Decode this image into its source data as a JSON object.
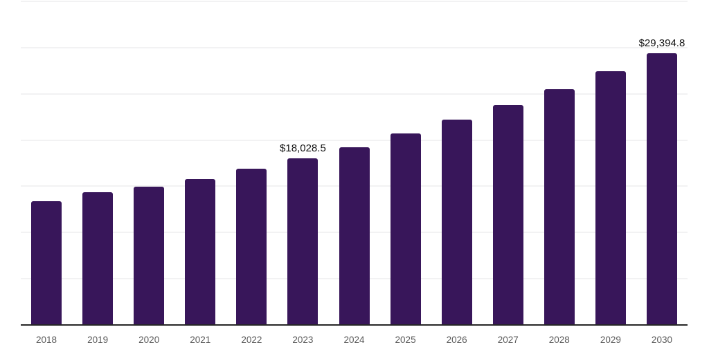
{
  "chart_data": {
    "type": "bar",
    "title": "",
    "xlabel": "",
    "ylabel": "",
    "categories": [
      "2018",
      "2019",
      "2020",
      "2021",
      "2022",
      "2023",
      "2024",
      "2025",
      "2026",
      "2027",
      "2028",
      "2029",
      "2030"
    ],
    "values": [
      13390,
      14340,
      14960,
      15760,
      16900,
      18028.5,
      19240,
      20740,
      22190,
      23760,
      25480,
      27420,
      29394.8
    ],
    "data_labels": {
      "2023": "$18,028.5",
      "2030": "$29,394.8"
    },
    "ylim": [
      0,
      35000
    ],
    "gridline_step": 5000,
    "grid": "horizontal",
    "legend": "none",
    "y_axis_labels_visible": false,
    "colors": {
      "bar": "#38165a",
      "axis_line": "#262626",
      "gridline": "#f2f2f3",
      "tick_label": "#595959",
      "data_label": "#111111",
      "background": "#ffffff"
    }
  }
}
